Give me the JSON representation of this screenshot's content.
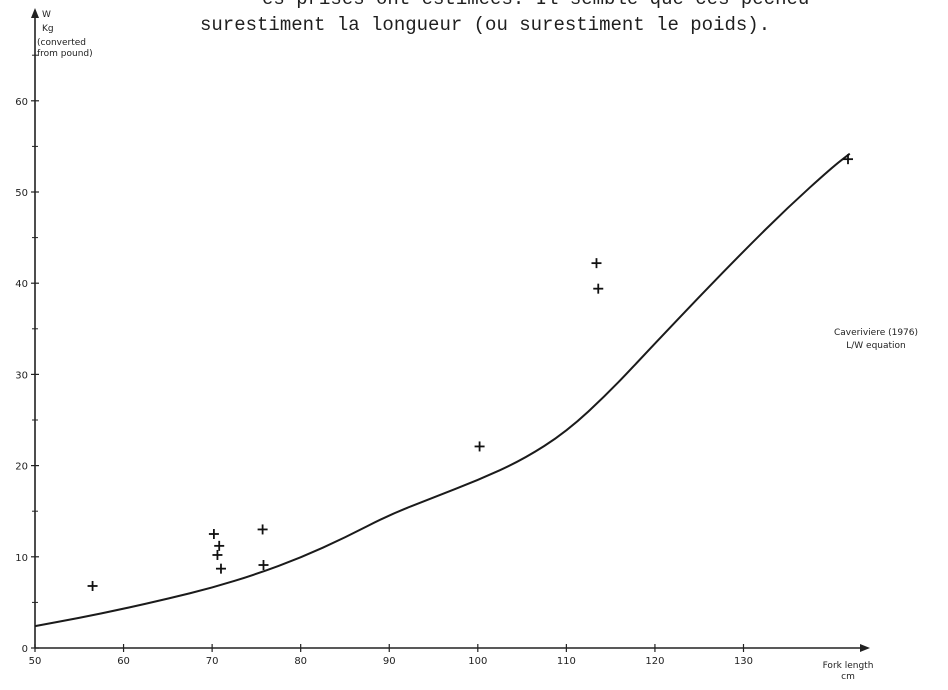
{
  "header": {
    "line1": "es prises ont estimées. Il semble que ces pêcheu",
    "line2": "surestiment la longueur (ou surestiment le poids)."
  },
  "chart_data": {
    "type": "scatter",
    "xlabel": "Fork length",
    "xunit": "cm",
    "ylabel_lines": [
      "W",
      "Kg",
      "(converted",
      "from pound)"
    ],
    "xlim": [
      50,
      144
    ],
    "ylim": [
      0,
      67
    ],
    "x_ticks": [
      50,
      60,
      70,
      80,
      90,
      100,
      110,
      120,
      130
    ],
    "x_tick_labels": [
      "50",
      "60",
      "70",
      "80",
      "90",
      "100",
      "110",
      "120",
      "130"
    ],
    "y_ticks": [
      0,
      10,
      20,
      30,
      40,
      50,
      60
    ],
    "y_tick_labels": [
      "0",
      "10",
      "20",
      "30",
      "40",
      "50",
      "60"
    ],
    "grid": false,
    "series": [
      {
        "type": "scatter",
        "marker": "plus",
        "x": [
          56.5,
          70.2,
          70.8,
          70.6,
          71.0,
          75.7,
          75.8,
          100.2,
          113.4,
          113.6,
          141.8
        ],
        "y": [
          6.8,
          12.5,
          11.2,
          10.2,
          8.7,
          13.0,
          9.1,
          22.1,
          42.2,
          39.4,
          53.6
        ]
      },
      {
        "type": "line",
        "x": [
          50,
          55,
          60,
          65,
          70,
          75,
          80,
          85,
          90,
          95,
          100,
          105,
          110,
          115,
          120,
          125,
          130,
          135,
          140,
          142
        ],
        "y": [
          2.4,
          3.3,
          4.3,
          5.4,
          6.6,
          8.1,
          9.9,
          12.1,
          14.6,
          16.5,
          18.4,
          20.6,
          23.7,
          28.2,
          33.4,
          38.5,
          43.5,
          48.3,
          52.7,
          54.2
        ]
      }
    ],
    "annotation": {
      "lines": [
        "Caveriviere (1976)",
        "L/W equation"
      ],
      "near_x": 141
    }
  }
}
